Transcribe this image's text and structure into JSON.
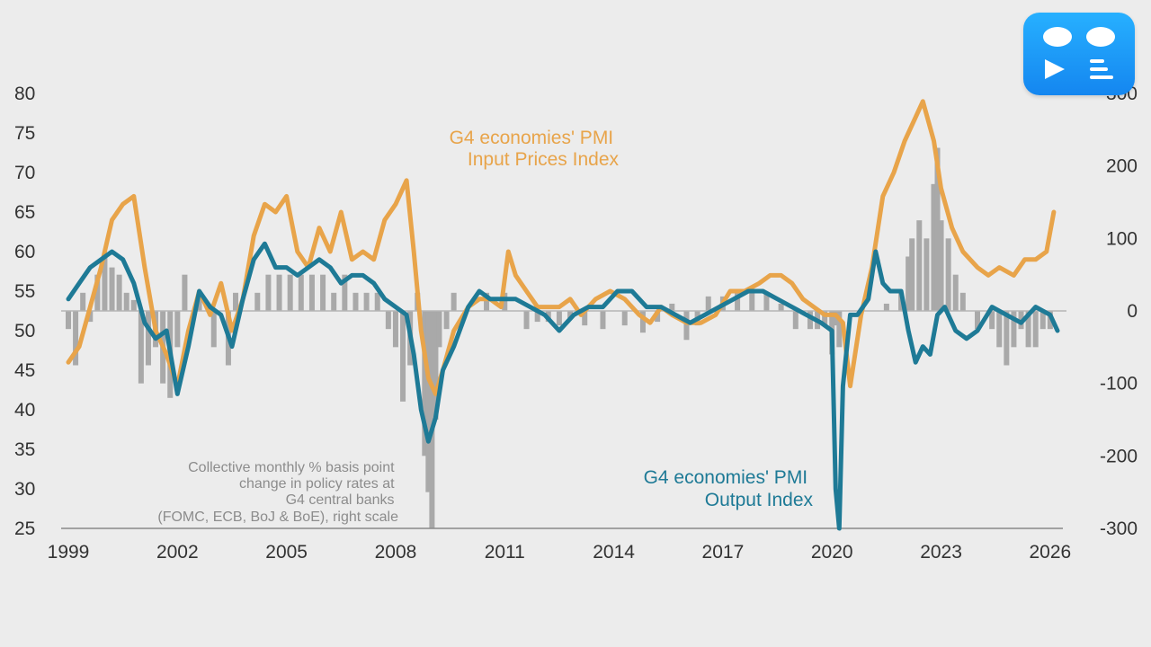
{
  "chart_data": {
    "type": "line",
    "title": "",
    "xlabel": "",
    "ylabel": "",
    "x_ticks": [
      "1999",
      "2002",
      "2005",
      "2008",
      "2011",
      "2014",
      "2017",
      "2020",
      "2023",
      "2026"
    ],
    "x_range": [
      1999,
      2026.3
    ],
    "left_axis": {
      "ticks": [
        80,
        75,
        70,
        65,
        60,
        55,
        50,
        45,
        40,
        35,
        30,
        25
      ],
      "ylim": [
        25,
        80
      ]
    },
    "right_axis": {
      "ticks": [
        300,
        200,
        100,
        0,
        -100,
        -200,
        -300
      ],
      "ylim": [
        -300,
        300
      ]
    },
    "annotations": {
      "input_label": [
        "G4 economies' PMI",
        "Input Prices Index"
      ],
      "output_label": [
        "G4 economies' PMI",
        "Output  Index"
      ],
      "bars_note": [
        "Collective monthly % basis point",
        "change in policy rates at",
        "G4 central banks",
        "(FOMC, ECB, BoJ & BoE), right scale"
      ]
    },
    "colors": {
      "input": "#e8a44a",
      "output": "#1e7a96",
      "bars": "#a9a9a9",
      "zero_line": "#b5b5b5"
    },
    "series": [
      {
        "name": "G4 economies' PMI Input Prices Index",
        "axis": "left",
        "x": [
          1999.0,
          1999.3,
          1999.6,
          1999.9,
          2000.2,
          2000.5,
          2000.8,
          2001.1,
          2001.4,
          2001.7,
          2002.0,
          2002.3,
          2002.6,
          2002.9,
          2003.2,
          2003.5,
          2003.8,
          2004.1,
          2004.4,
          2004.7,
          2005.0,
          2005.3,
          2005.6,
          2005.9,
          2006.2,
          2006.5,
          2006.8,
          2007.1,
          2007.4,
          2007.7,
          2008.0,
          2008.3,
          2008.5,
          2008.7,
          2008.9,
          2009.1,
          2009.3,
          2009.6,
          2010.0,
          2010.3,
          2010.6,
          2010.9,
          2011.1,
          2011.3,
          2011.6,
          2011.9,
          2012.2,
          2012.5,
          2012.8,
          2013.1,
          2013.5,
          2013.9,
          2014.3,
          2014.7,
          2015.0,
          2015.3,
          2015.6,
          2016.0,
          2016.4,
          2016.8,
          2017.2,
          2017.6,
          2018.0,
          2018.3,
          2018.6,
          2018.9,
          2019.2,
          2019.5,
          2019.8,
          2020.1,
          2020.3,
          2020.5,
          2020.8,
          2021.1,
          2021.4,
          2021.7,
          2022.0,
          2022.2,
          2022.5,
          2022.8,
          2023.0,
          2023.3,
          2023.6,
          2024.0,
          2024.3,
          2024.6,
          2025.0,
          2025.3,
          2025.6,
          2025.9,
          2026.1
        ],
        "values": [
          46,
          48,
          53,
          58,
          64,
          66,
          67,
          58,
          50,
          47,
          43,
          50,
          55,
          52,
          56,
          50,
          54,
          62,
          66,
          65,
          67,
          60,
          58,
          63,
          60,
          65,
          59,
          60,
          59,
          64,
          66,
          69,
          60,
          50,
          44,
          42,
          45,
          50,
          53,
          54,
          54,
          53,
          60,
          57,
          55,
          53,
          53,
          53,
          54,
          52,
          54,
          55,
          54,
          52,
          51,
          53,
          52,
          51,
          51,
          52,
          55,
          55,
          56,
          57,
          57,
          56,
          54,
          53,
          52,
          52,
          51,
          43,
          52,
          58,
          67,
          70,
          74,
          76,
          79,
          74,
          68,
          63,
          60,
          58,
          57,
          58,
          57,
          59,
          59,
          60,
          65
        ]
      },
      {
        "name": "G4 economies' PMI Output Index",
        "axis": "left",
        "x": [
          1999.0,
          1999.3,
          1999.6,
          1999.9,
          2000.2,
          2000.5,
          2000.8,
          2001.1,
          2001.4,
          2001.7,
          2002.0,
          2002.3,
          2002.6,
          2002.9,
          2003.2,
          2003.5,
          2003.8,
          2004.1,
          2004.4,
          2004.7,
          2005.0,
          2005.3,
          2005.6,
          2005.9,
          2006.2,
          2006.5,
          2006.8,
          2007.1,
          2007.4,
          2007.7,
          2008.0,
          2008.3,
          2008.5,
          2008.7,
          2008.9,
          2009.1,
          2009.3,
          2009.6,
          2010.0,
          2010.3,
          2010.6,
          2010.9,
          2011.3,
          2011.7,
          2012.1,
          2012.5,
          2012.9,
          2013.3,
          2013.7,
          2014.1,
          2014.5,
          2014.9,
          2015.3,
          2015.7,
          2016.1,
          2016.5,
          2016.9,
          2017.3,
          2017.7,
          2018.1,
          2018.5,
          2018.9,
          2019.3,
          2019.7,
          2020.0,
          2020.1,
          2020.2,
          2020.3,
          2020.5,
          2020.7,
          2021.0,
          2021.2,
          2021.4,
          2021.6,
          2021.9,
          2022.1,
          2022.3,
          2022.5,
          2022.7,
          2022.9,
          2023.1,
          2023.4,
          2023.7,
          2024.0,
          2024.4,
          2024.8,
          2025.2,
          2025.6,
          2026.0,
          2026.2
        ],
        "values": [
          54,
          56,
          58,
          59,
          60,
          59,
          56,
          51,
          49,
          50,
          42,
          48,
          55,
          53,
          52,
          48,
          54,
          59,
          61,
          58,
          58,
          57,
          58,
          59,
          58,
          56,
          57,
          57,
          56,
          54,
          53,
          52,
          47,
          40,
          36,
          39,
          45,
          48,
          53,
          55,
          54,
          54,
          54,
          53,
          52,
          50,
          52,
          53,
          53,
          55,
          55,
          53,
          53,
          52,
          51,
          52,
          53,
          54,
          55,
          55,
          54,
          53,
          52,
          51,
          50,
          30,
          25,
          43,
          52,
          52,
          54,
          60,
          56,
          55,
          55,
          50,
          46,
          48,
          47,
          52,
          53,
          50,
          49,
          50,
          53,
          52,
          51,
          53,
          52,
          50
        ]
      },
      {
        "name": "Collective monthly % basis point change in policy rates at G4 central banks (FOMC, ECB, BoJ & BoE), right scale",
        "axis": "right",
        "type": "bar",
        "x": [
          1999.0,
          1999.2,
          1999.4,
          1999.6,
          1999.8,
          2000.0,
          2000.2,
          2000.4,
          2000.6,
          2000.8,
          2001.0,
          2001.2,
          2001.4,
          2001.6,
          2001.8,
          2002.0,
          2002.2,
          2002.6,
          2003.0,
          2003.2,
          2003.4,
          2003.6,
          2004.2,
          2004.5,
          2004.8,
          2005.1,
          2005.4,
          2005.7,
          2006.0,
          2006.3,
          2006.6,
          2006.9,
          2007.2,
          2007.5,
          2007.8,
          2008.0,
          2008.2,
          2008.4,
          2008.6,
          2008.8,
          2008.9,
          2009.0,
          2009.1,
          2009.2,
          2009.4,
          2009.6,
          2010.5,
          2011.0,
          2011.3,
          2011.6,
          2011.9,
          2012.2,
          2012.5,
          2012.8,
          2013.2,
          2013.7,
          2014.3,
          2014.8,
          2015.2,
          2015.6,
          2016.0,
          2016.3,
          2016.6,
          2017.0,
          2017.4,
          2017.8,
          2018.2,
          2018.6,
          2019.0,
          2019.4,
          2019.6,
          2019.8,
          2020.0,
          2020.1,
          2020.2,
          2020.3,
          2020.6,
          2021.0,
          2021.5,
          2021.9,
          2022.1,
          2022.2,
          2022.4,
          2022.6,
          2022.8,
          2022.9,
          2023.0,
          2023.2,
          2023.4,
          2023.6,
          2023.8,
          2024.0,
          2024.4,
          2024.6,
          2024.8,
          2025.0,
          2025.2,
          2025.4,
          2025.6,
          2025.8,
          2026.0
        ],
        "values": [
          -25,
          -75,
          25,
          -15,
          50,
          75,
          60,
          50,
          25,
          15,
          -100,
          -75,
          -50,
          -100,
          -120,
          -50,
          50,
          25,
          -50,
          0,
          -75,
          25,
          25,
          50,
          50,
          50,
          50,
          50,
          50,
          25,
          50,
          25,
          25,
          25,
          -25,
          -50,
          -125,
          -75,
          25,
          -200,
          -250,
          -300,
          -150,
          -50,
          -25,
          25,
          25,
          25,
          0,
          -25,
          -15,
          -15,
          -20,
          -10,
          -20,
          -25,
          -20,
          -30,
          -15,
          10,
          -40,
          -20,
          20,
          20,
          25,
          25,
          25,
          10,
          -25,
          -25,
          -25,
          -20,
          -60,
          -20,
          -50,
          0,
          0,
          0,
          10,
          25,
          75,
          100,
          125,
          100,
          175,
          225,
          125,
          100,
          50,
          25,
          0,
          -25,
          -25,
          -50,
          -75,
          -50,
          -25,
          -50,
          -50,
          -25,
          -25
        ]
      }
    ]
  }
}
